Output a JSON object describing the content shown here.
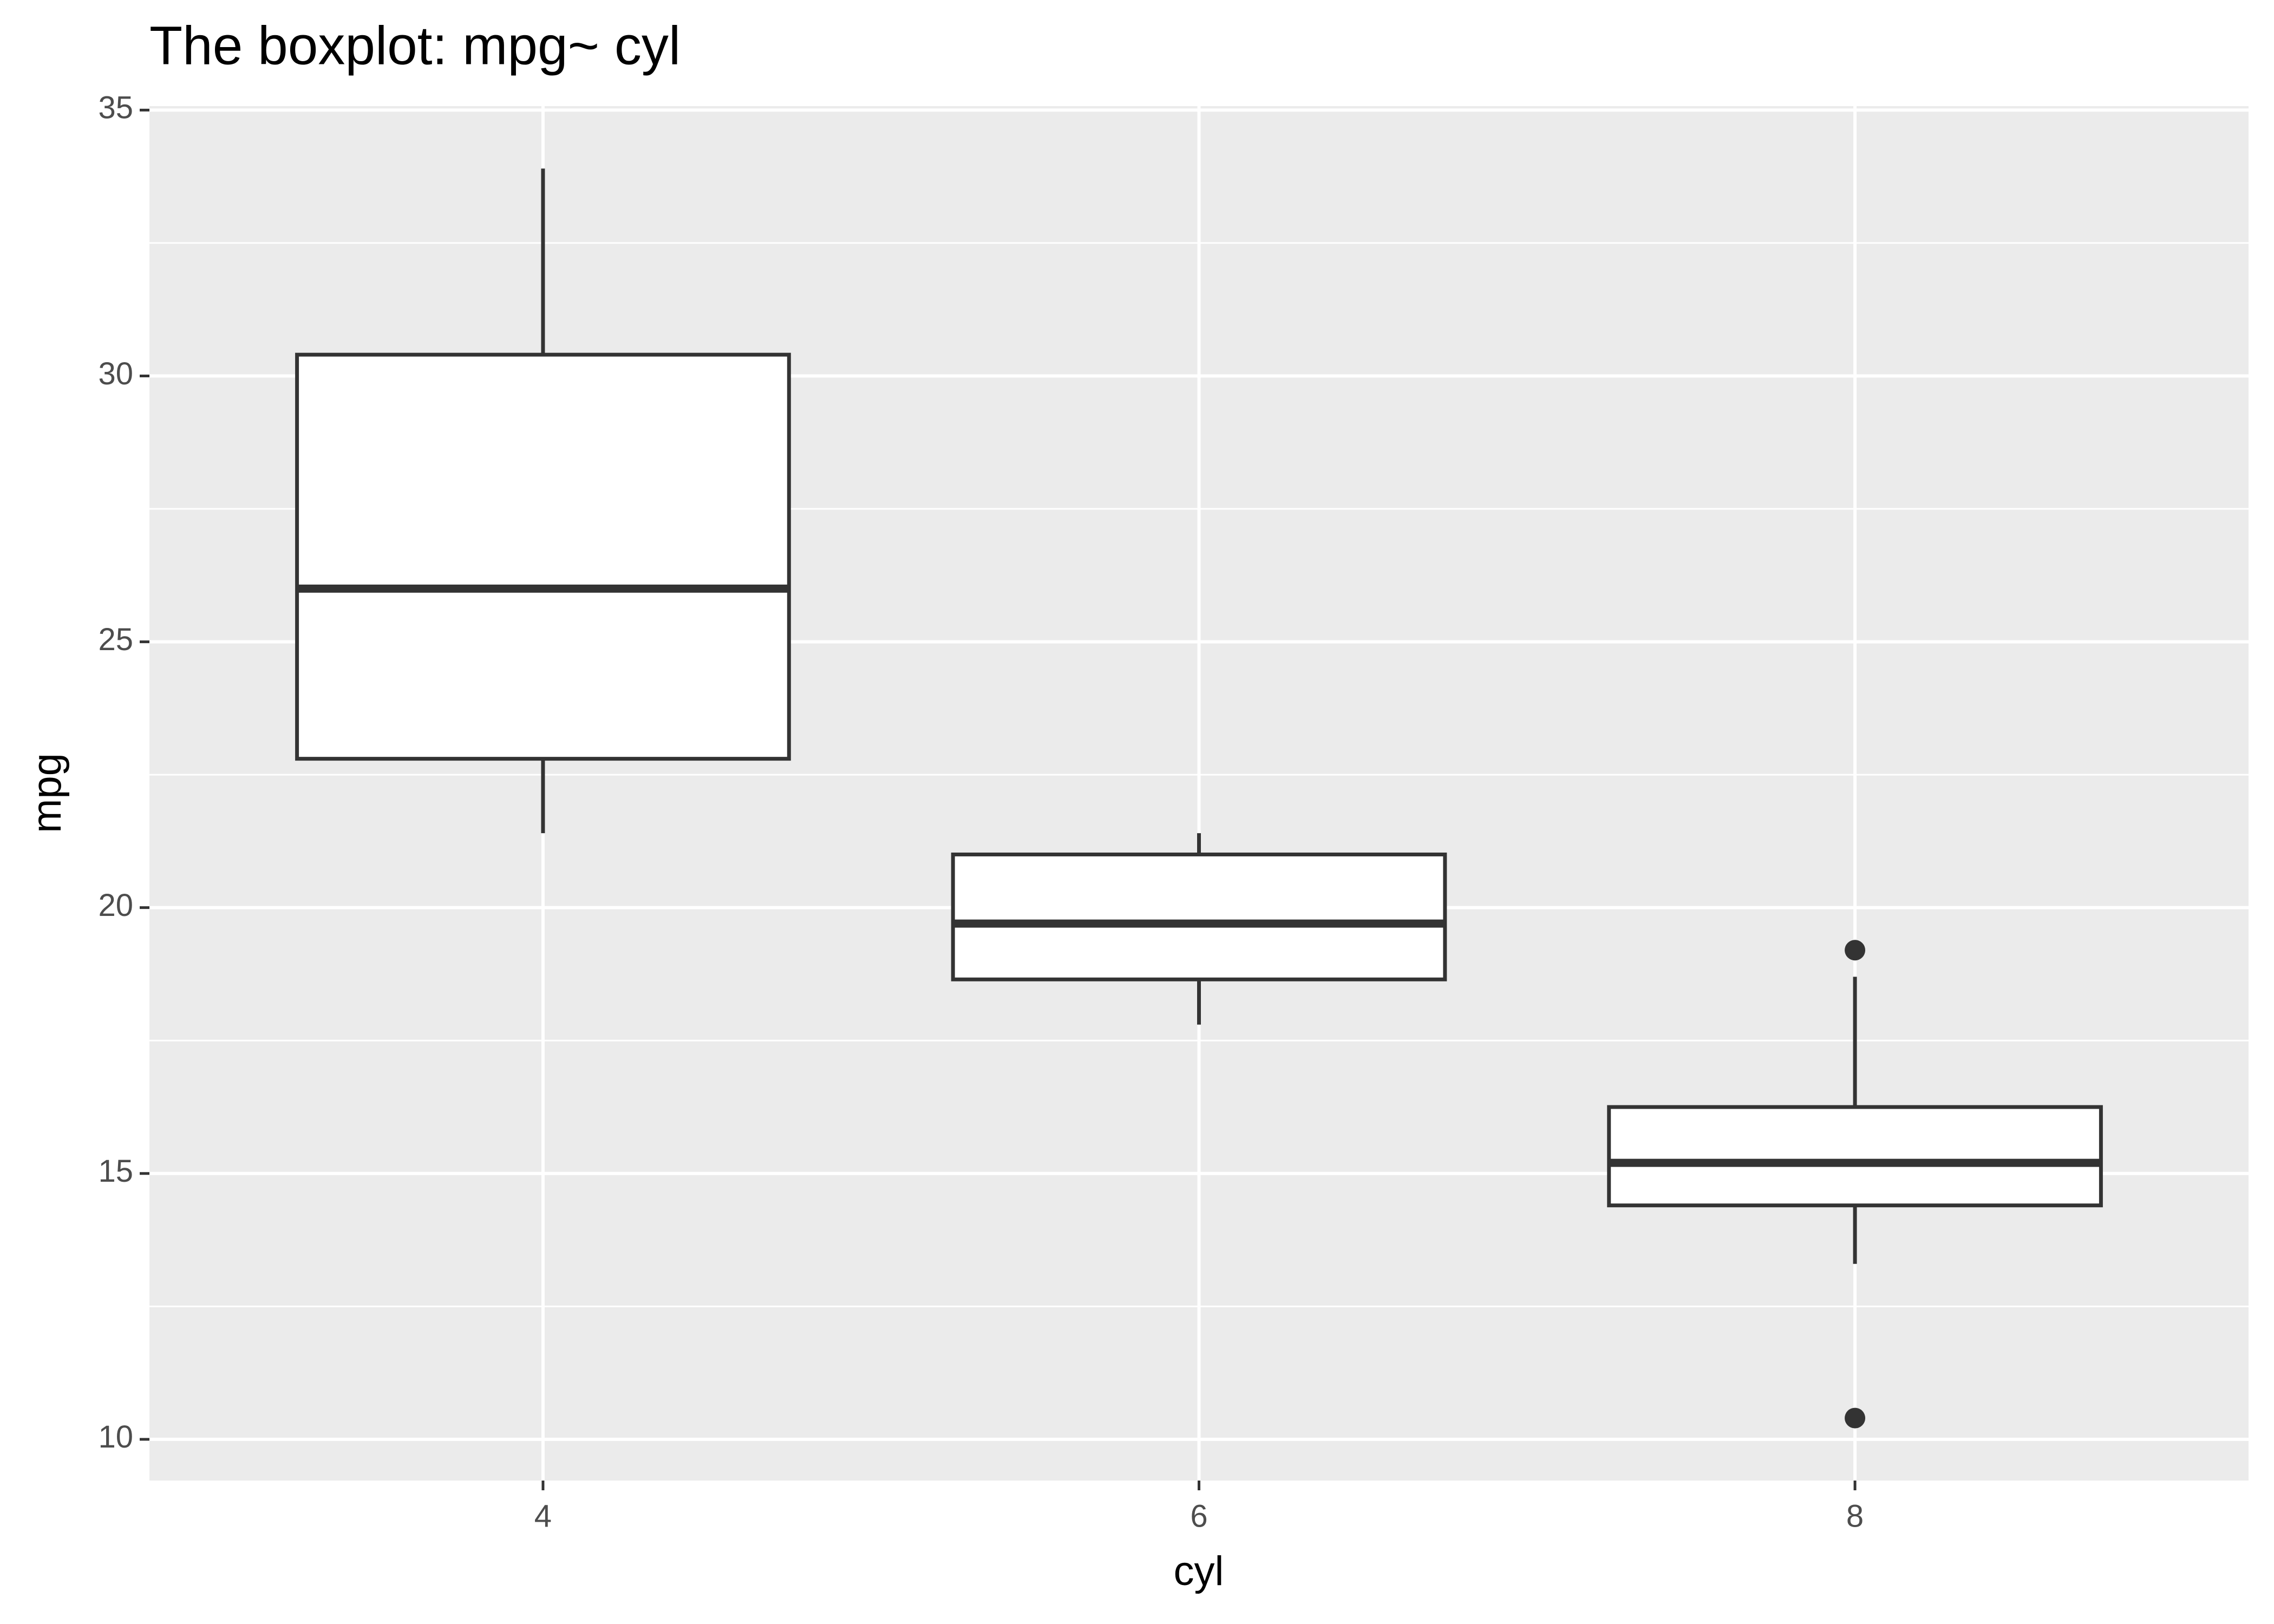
{
  "chart_data": {
    "type": "boxplot",
    "title": "The boxplot:  mpg~ cyl",
    "x_label": "cyl",
    "y_label": "mpg",
    "x": [
      4,
      6,
      8
    ],
    "min": [
      21.4,
      17.8,
      13.3
    ],
    "q1": [
      22.8,
      18.65,
      14.4
    ],
    "median": [
      26,
      19.7,
      15.2
    ],
    "q3": [
      30.4,
      21,
      16.25
    ],
    "max": [
      33.9,
      21.4,
      18.7
    ],
    "outliers": [
      [],
      [],
      [
        10.4,
        19.2
      ]
    ],
    "xlim": [
      2.8,
      9.2
    ],
    "xticks": [
      4,
      6,
      8
    ],
    "ylim": [
      9.225,
      35.075
    ],
    "yticks": [
      10,
      15,
      20,
      25,
      30,
      35
    ],
    "yminor": [
      12.5,
      17.5,
      22.5,
      27.5,
      32.5
    ],
    "grid": true,
    "panel_color": "#ebebeb",
    "box_fill": "#ffffff",
    "line_color": "#333333"
  }
}
